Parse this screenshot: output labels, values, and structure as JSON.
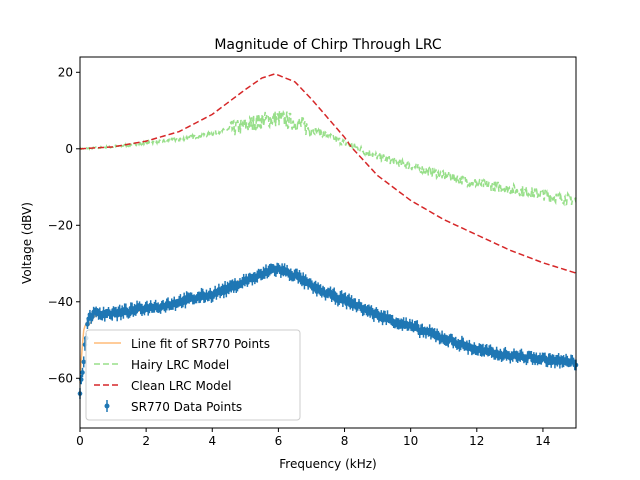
{
  "chart_data": {
    "type": "line",
    "title": "Magnitude of Chirp Through LRC",
    "xlabel": "Frequency (kHz)",
    "ylabel": "Voltage (dBV)",
    "xlim": [
      0,
      15
    ],
    "ylim": [
      -73,
      24
    ],
    "xticks": [
      0,
      2,
      4,
      6,
      8,
      10,
      12,
      14
    ],
    "yticks": [
      -60,
      -40,
      -20,
      0,
      20
    ],
    "grid": false,
    "legend_position": "lower-left",
    "colors": {
      "sr770_points": "#1f77b4",
      "line_fit": "#ffbb78",
      "hairy_model": "#98df8a",
      "clean_model": "#d62728"
    },
    "legend": [
      {
        "label": "Line fit of SR770 Points",
        "style": "solid",
        "color": "#ffbb78"
      },
      {
        "label": "Hairy LRC Model",
        "style": "dashed",
        "color": "#98df8a"
      },
      {
        "label": "Clean LRC Model",
        "style": "dashed",
        "color": "#d62728"
      },
      {
        "label": "SR770 Data Points",
        "style": "errorbar",
        "color": "#1f77b4"
      }
    ],
    "series": [
      {
        "name": "Clean LRC Model",
        "x": [
          0,
          1,
          2,
          3,
          4,
          5,
          5.5,
          5.9,
          6.5,
          7,
          8,
          8.2,
          9,
          10,
          11,
          12,
          13,
          14,
          15
        ],
        "y": [
          0,
          0.5,
          2,
          4.5,
          9,
          15.5,
          18.5,
          19.6,
          17.5,
          13,
          3,
          0.5,
          -7,
          -13.5,
          -18.5,
          -22.5,
          -26.5,
          -29.8,
          -32.5
        ]
      },
      {
        "name": "Hairy LRC Model",
        "x": [
          0,
          1,
          2,
          3,
          4,
          5,
          5.5,
          6,
          6.5,
          7,
          7.5,
          8,
          9,
          10,
          11,
          12,
          13,
          14,
          15
        ],
        "y": [
          0,
          0.5,
          1.5,
          2.5,
          4,
          6,
          7.5,
          8,
          7,
          5,
          3.5,
          1.5,
          -2,
          -4.5,
          -7,
          -9,
          -10.5,
          -12,
          -13.5
        ]
      },
      {
        "name": "SR770 Data Points",
        "x": [
          0,
          0.25,
          0.5,
          1,
          1.5,
          2,
          2.5,
          3,
          3.5,
          4,
          4.5,
          5,
          5.5,
          5.8,
          6,
          6.5,
          7,
          7.5,
          8,
          8.5,
          9,
          9.5,
          10,
          10.5,
          11,
          11.5,
          12,
          12.5,
          13,
          13.5,
          14,
          14.5,
          15
        ],
        "y": [
          -64,
          -44,
          -43,
          -43,
          -42.5,
          -41.5,
          -41,
          -40,
          -39,
          -38,
          -36.5,
          -34.5,
          -33,
          -31.5,
          -31.5,
          -33,
          -36,
          -38,
          -39.5,
          -41.5,
          -43.5,
          -45,
          -46.5,
          -48,
          -49.5,
          -51,
          -52.5,
          -53.5,
          -54,
          -54.5,
          -55,
          -55.5,
          -56
        ]
      },
      {
        "name": "Line fit of SR770 Points",
        "x": [
          0,
          0.1,
          0.5,
          1,
          1.5,
          2,
          2.5,
          3,
          3.5,
          4,
          4.5,
          5,
          5.5,
          5.8,
          6,
          6.5,
          7,
          7.5,
          8,
          8.5,
          9,
          9.5,
          10,
          10.5,
          11,
          11.5,
          12,
          12.5,
          13,
          13.5,
          14,
          14.5,
          15
        ],
        "y": [
          -61,
          -47,
          -43.5,
          -43,
          -42.5,
          -41.5,
          -41,
          -40,
          -39,
          -38,
          -36.5,
          -34.5,
          -33,
          -32,
          -32,
          -33,
          -36,
          -38,
          -39.5,
          -41.5,
          -43.5,
          -45,
          -46.5,
          -48,
          -49.5,
          -51,
          -52.5,
          -53.5,
          -54,
          -54.5,
          -55,
          -55.5,
          -56
        ]
      }
    ]
  }
}
